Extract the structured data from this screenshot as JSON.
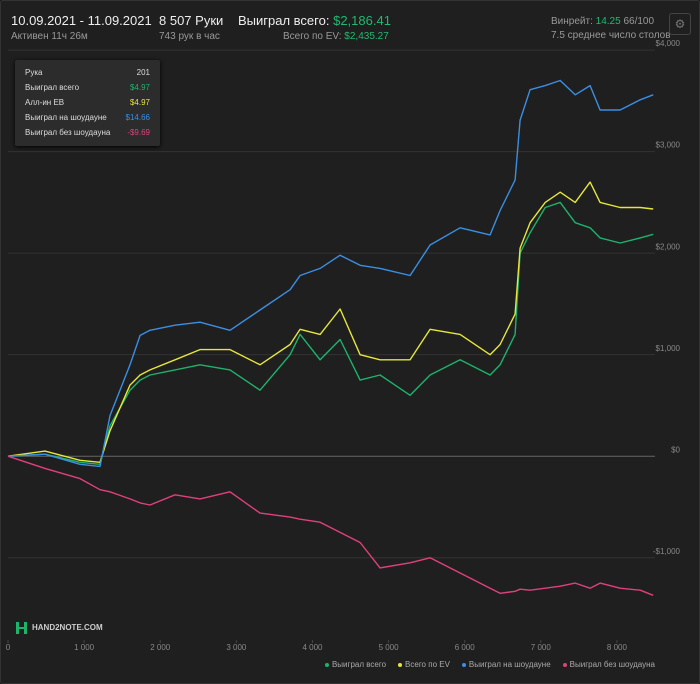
{
  "header": {
    "date_range": "10.09.2021 - 11.09.2021",
    "active": "Активен 11ч 26м",
    "hands": "8 507 Руки",
    "hands_rate": "743 рук в час",
    "won_label": "Выиграл всего:",
    "won_value": "$2,186.41",
    "ev_label": "Всего по EV:",
    "ev_value": "$2,435.27",
    "winrate_label": "Винрейт:",
    "winrate_value": "14.25",
    "winrate_unit": "66/100",
    "tables": "7.5 среднее число столов"
  },
  "tooltip": {
    "rows": [
      {
        "label": "Рука",
        "value": "201"
      },
      {
        "label": "Выиграл всего",
        "value": "$4.97"
      },
      {
        "label": "Алл-ин EB",
        "value": "$4.97"
      },
      {
        "label": "Выиграл на шоудауне",
        "value": "$14.66"
      },
      {
        "label": "Выиграл без шоудауна",
        "value": "-$9.69"
      }
    ]
  },
  "watermark": "HAND2NOTE.COM",
  "chart_data": {
    "type": "line",
    "x": [
      0,
      486,
      946,
      1209,
      1340,
      1603,
      1735,
      1866,
      2194,
      2523,
      2917,
      3311,
      3706,
      3837,
      4100,
      4363,
      4626,
      4888,
      5283,
      5545,
      5940,
      6334,
      6465,
      6662,
      6728,
      6859,
      7057,
      7254,
      7451,
      7648,
      7779,
      8042,
      8305,
      8476
    ],
    "series": [
      {
        "name": "Выиграл всего",
        "color": "#1db36b",
        "values": [
          0,
          20,
          -60,
          -80,
          300,
          650,
          750,
          800,
          850,
          900,
          850,
          650,
          1000,
          1200,
          950,
          1150,
          750,
          800,
          600,
          800,
          950,
          800,
          900,
          1200,
          2000,
          2200,
          2450,
          2500,
          2300,
          2250,
          2150,
          2100,
          2150,
          2186
        ]
      },
      {
        "name": "Всего по EV",
        "color": "#e6e63c",
        "values": [
          0,
          50,
          -40,
          -60,
          250,
          700,
          800,
          850,
          950,
          1050,
          1050,
          900,
          1100,
          1250,
          1200,
          1450,
          1000,
          950,
          950,
          1250,
          1200,
          1000,
          1100,
          1400,
          2050,
          2300,
          2500,
          2600,
          2500,
          2700,
          2500,
          2450,
          2450,
          2435
        ]
      },
      {
        "name": "Выиграл на шоудауне",
        "color": "#3b8fe2",
        "values": [
          0,
          20,
          -80,
          -100,
          400,
          900,
          1190,
          1240,
          1290,
          1320,
          1240,
          1440,
          1640,
          1780,
          1850,
          1980,
          1880,
          1850,
          1780,
          2080,
          2250,
          2180,
          2420,
          2720,
          3310,
          3610,
          3650,
          3700,
          3560,
          3650,
          3410,
          3410,
          3510,
          3560
        ]
      },
      {
        "name": "Выиграл без шоудауна",
        "color": "#e0407c",
        "values": [
          0,
          -120,
          -220,
          -330,
          -350,
          -420,
          -460,
          -480,
          -380,
          -420,
          -350,
          -560,
          -600,
          -620,
          -650,
          -750,
          -850,
          -1100,
          -1050,
          -1000,
          -1150,
          -1300,
          -1350,
          -1330,
          -1310,
          -1320,
          -1300,
          -1280,
          -1250,
          -1300,
          -1250,
          -1300,
          -1320,
          -1370
        ]
      }
    ],
    "xlim": [
      0,
      8500
    ],
    "xticks": [
      0,
      {
        "value": 1000,
        "label": "1 000"
      },
      {
        "value": 2000,
        "label": "2 000"
      },
      {
        "value": 3000,
        "label": "3 000"
      },
      {
        "value": 4000,
        "label": "4 000"
      },
      {
        "value": 5000,
        "label": "5 000"
      },
      {
        "value": 6000,
        "label": "6 000"
      },
      {
        "value": 7000,
        "label": "7 000"
      },
      {
        "value": 8000,
        "label": "8 000"
      }
    ],
    "ylim": [
      -1810,
      4050
    ],
    "yticks": [
      {
        "value": -1000,
        "label": "-$1,000"
      },
      {
        "value": 0,
        "label": "$0"
      },
      {
        "value": 1000,
        "label": "$1,000"
      },
      {
        "value": 2000,
        "label": "$2,000"
      },
      {
        "value": 3000,
        "label": "$3,000"
      },
      {
        "value": 4000,
        "label": "$4,000"
      }
    ],
    "grid": true
  }
}
